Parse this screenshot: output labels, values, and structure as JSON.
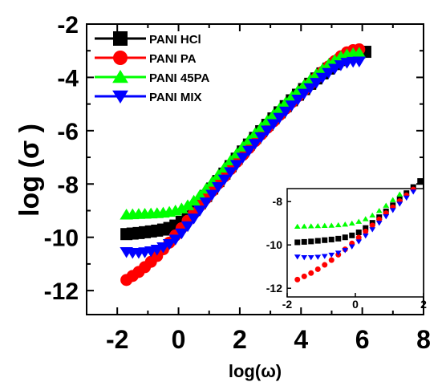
{
  "chart_data": [
    {
      "type": "scatter",
      "role": "main",
      "xlabel": "log(ω)",
      "ylabel": "log (σ )",
      "xlim": [
        -3,
        8
      ],
      "ylim": [
        -12.9,
        -2
      ],
      "xticks": [
        -2,
        0,
        2,
        4,
        6,
        8
      ],
      "yticks": [
        -2,
        -4,
        -6,
        -8,
        -10,
        -12
      ],
      "legend_position": "top-left",
      "series": [
        {
          "name": "PANI HCl",
          "color": "#000000",
          "marker": "square",
          "points": [
            [
              -1.7,
              -9.88
            ],
            [
              -1.5,
              -9.86
            ],
            [
              -1.3,
              -9.84
            ],
            [
              -1.1,
              -9.81
            ],
            [
              -0.9,
              -9.78
            ],
            [
              -0.7,
              -9.75
            ],
            [
              -0.5,
              -9.71
            ],
            [
              -0.3,
              -9.65
            ],
            [
              -0.1,
              -9.56
            ],
            [
              0.1,
              -9.42
            ],
            [
              0.3,
              -9.22
            ],
            [
              0.5,
              -8.98
            ],
            [
              0.7,
              -8.72
            ],
            [
              0.9,
              -8.45
            ],
            [
              1.1,
              -8.17
            ],
            [
              1.3,
              -7.89
            ],
            [
              1.5,
              -7.61
            ],
            [
              1.7,
              -7.33
            ],
            [
              1.9,
              -7.05
            ],
            [
              2.1,
              -6.78
            ],
            [
              2.3,
              -6.52
            ],
            [
              2.5,
              -6.27
            ],
            [
              2.7,
              -6.02
            ],
            [
              2.9,
              -5.78
            ],
            [
              3.1,
              -5.54
            ],
            [
              3.3,
              -5.31
            ],
            [
              3.5,
              -5.08
            ],
            [
              3.7,
              -4.86
            ],
            [
              3.9,
              -4.65
            ],
            [
              4.1,
              -4.44
            ],
            [
              4.3,
              -4.24
            ],
            [
              4.5,
              -4.04
            ],
            [
              4.7,
              -3.85
            ],
            [
              4.9,
              -3.67
            ],
            [
              5.1,
              -3.5
            ],
            [
              5.3,
              -3.35
            ],
            [
              5.5,
              -3.22
            ],
            [
              5.7,
              -3.13
            ],
            [
              5.9,
              -3.07
            ],
            [
              6.1,
              -3.04
            ]
          ]
        },
        {
          "name": "PANI PA",
          "color": "#ff0000",
          "marker": "circle",
          "points": [
            [
              -1.7,
              -11.6
            ],
            [
              -1.5,
              -11.45
            ],
            [
              -1.3,
              -11.3
            ],
            [
              -1.1,
              -11.12
            ],
            [
              -0.9,
              -10.92
            ],
            [
              -0.7,
              -10.7
            ],
            [
              -0.5,
              -10.45
            ],
            [
              -0.3,
              -10.2
            ],
            [
              -0.1,
              -9.93
            ],
            [
              0.1,
              -9.66
            ],
            [
              0.3,
              -9.38
            ],
            [
              0.5,
              -9.1
            ],
            [
              0.7,
              -8.82
            ],
            [
              0.9,
              -8.54
            ],
            [
              1.1,
              -8.26
            ],
            [
              1.3,
              -7.98
            ],
            [
              1.5,
              -7.71
            ],
            [
              1.7,
              -7.44
            ],
            [
              1.9,
              -7.17
            ],
            [
              2.1,
              -6.91
            ],
            [
              2.3,
              -6.65
            ],
            [
              2.5,
              -6.39
            ],
            [
              2.7,
              -6.14
            ],
            [
              2.9,
              -5.89
            ],
            [
              3.1,
              -5.65
            ],
            [
              3.3,
              -5.41
            ],
            [
              3.5,
              -5.17
            ],
            [
              3.7,
              -4.93
            ],
            [
              3.9,
              -4.7
            ],
            [
              4.1,
              -4.47
            ],
            [
              4.3,
              -4.24
            ],
            [
              4.5,
              -4.02
            ],
            [
              4.7,
              -3.8
            ],
            [
              4.9,
              -3.59
            ],
            [
              5.1,
              -3.39
            ],
            [
              5.3,
              -3.21
            ],
            [
              5.5,
              -3.06
            ],
            [
              5.7,
              -2.98
            ],
            [
              5.9,
              -2.95
            ]
          ]
        },
        {
          "name": "PANI 45PA",
          "color": "#00ff00",
          "marker": "triangle-up",
          "points": [
            [
              -1.7,
              -9.15
            ],
            [
              -1.5,
              -9.14
            ],
            [
              -1.3,
              -9.13
            ],
            [
              -1.1,
              -9.12
            ],
            [
              -0.9,
              -9.11
            ],
            [
              -0.7,
              -9.1
            ],
            [
              -0.5,
              -9.08
            ],
            [
              -0.3,
              -9.05
            ],
            [
              -0.1,
              -9.0
            ],
            [
              0.1,
              -8.92
            ],
            [
              0.3,
              -8.8
            ],
            [
              0.5,
              -8.63
            ],
            [
              0.7,
              -8.42
            ],
            [
              0.9,
              -8.18
            ],
            [
              1.1,
              -7.92
            ],
            [
              1.3,
              -7.66
            ],
            [
              1.5,
              -7.39
            ],
            [
              1.7,
              -7.12
            ],
            [
              1.9,
              -6.86
            ],
            [
              2.1,
              -6.6
            ],
            [
              2.3,
              -6.35
            ],
            [
              2.5,
              -6.1
            ],
            [
              2.7,
              -5.86
            ],
            [
              2.9,
              -5.62
            ],
            [
              3.1,
              -5.39
            ],
            [
              3.3,
              -5.16
            ],
            [
              3.5,
              -4.94
            ],
            [
              3.7,
              -4.72
            ],
            [
              3.9,
              -4.5
            ],
            [
              4.1,
              -4.29
            ],
            [
              4.3,
              -4.08
            ],
            [
              4.5,
              -3.88
            ],
            [
              4.7,
              -3.69
            ],
            [
              4.9,
              -3.51
            ],
            [
              5.1,
              -3.35
            ],
            [
              5.3,
              -3.22
            ],
            [
              5.5,
              -3.14
            ],
            [
              5.7,
              -3.1
            ],
            [
              5.9,
              -3.08
            ]
          ]
        },
        {
          "name": "PANI MIX",
          "color": "#0000ff",
          "marker": "triangle-down",
          "points": [
            [
              -1.7,
              -10.55
            ],
            [
              -1.5,
              -10.58
            ],
            [
              -1.3,
              -10.58
            ],
            [
              -1.1,
              -10.56
            ],
            [
              -0.9,
              -10.52
            ],
            [
              -0.7,
              -10.46
            ],
            [
              -0.5,
              -10.37
            ],
            [
              -0.3,
              -10.25
            ],
            [
              -0.1,
              -10.08
            ],
            [
              0.1,
              -9.85
            ],
            [
              0.3,
              -9.58
            ],
            [
              0.5,
              -9.29
            ],
            [
              0.7,
              -8.99
            ],
            [
              0.9,
              -8.69
            ],
            [
              1.1,
              -8.4
            ],
            [
              1.3,
              -8.11
            ],
            [
              1.5,
              -7.83
            ],
            [
              1.7,
              -7.55
            ],
            [
              1.9,
              -7.28
            ],
            [
              2.1,
              -7.01
            ],
            [
              2.3,
              -6.75
            ],
            [
              2.5,
              -6.49
            ],
            [
              2.7,
              -6.24
            ],
            [
              2.9,
              -5.99
            ],
            [
              3.1,
              -5.75
            ],
            [
              3.3,
              -5.51
            ],
            [
              3.5,
              -5.28
            ],
            [
              3.7,
              -5.05
            ],
            [
              3.9,
              -4.83
            ],
            [
              4.1,
              -4.61
            ],
            [
              4.3,
              -4.4
            ],
            [
              4.5,
              -4.2
            ],
            [
              4.7,
              -4.01
            ],
            [
              4.9,
              -3.83
            ],
            [
              5.1,
              -3.67
            ],
            [
              5.3,
              -3.54
            ],
            [
              5.5,
              -3.45
            ],
            [
              5.7,
              -3.41
            ],
            [
              5.9,
              -3.4
            ]
          ]
        }
      ],
      "legend": [
        {
          "label": "PANI HCl",
          "color": "#000000",
          "marker": "square"
        },
        {
          "label": "PANI PA",
          "color": "#ff0000",
          "marker": "circle"
        },
        {
          "label": "PANI 45PA",
          "color": "#00ff00",
          "marker": "triangle-up"
        },
        {
          "label": "PANI MIX",
          "color": "#0000ff",
          "marker": "triangle-down"
        }
      ]
    },
    {
      "type": "scatter",
      "role": "inset",
      "xlim": [
        -2,
        2
      ],
      "ylim": [
        -12.4,
        -7.4
      ],
      "xticks": [
        -2,
        0,
        2
      ],
      "yticks": [
        -8,
        -10,
        -12
      ],
      "series": [
        {
          "name": "PANI HCl",
          "color": "#000000",
          "marker": "square",
          "points": [
            [
              -1.7,
              -9.88
            ],
            [
              -1.5,
              -9.86
            ],
            [
              -1.3,
              -9.84
            ],
            [
              -1.1,
              -9.81
            ],
            [
              -0.9,
              -9.78
            ],
            [
              -0.7,
              -9.75
            ],
            [
              -0.5,
              -9.71
            ],
            [
              -0.3,
              -9.65
            ],
            [
              -0.1,
              -9.56
            ],
            [
              0.1,
              -9.42
            ],
            [
              0.3,
              -9.22
            ],
            [
              0.5,
              -8.98
            ],
            [
              0.7,
              -8.72
            ],
            [
              0.9,
              -8.45
            ],
            [
              1.1,
              -8.17
            ],
            [
              1.3,
              -7.89
            ],
            [
              1.5,
              -7.61
            ],
            [
              1.7,
              -7.33
            ],
            [
              1.9,
              -7.05
            ]
          ]
        },
        {
          "name": "PANI PA",
          "color": "#ff0000",
          "marker": "circle",
          "points": [
            [
              -1.7,
              -11.6
            ],
            [
              -1.5,
              -11.45
            ],
            [
              -1.3,
              -11.3
            ],
            [
              -1.1,
              -11.12
            ],
            [
              -0.9,
              -10.92
            ],
            [
              -0.7,
              -10.7
            ],
            [
              -0.5,
              -10.45
            ],
            [
              -0.3,
              -10.2
            ],
            [
              -0.1,
              -9.93
            ],
            [
              0.1,
              -9.66
            ],
            [
              0.3,
              -9.38
            ],
            [
              0.5,
              -9.1
            ],
            [
              0.7,
              -8.82
            ],
            [
              0.9,
              -8.54
            ],
            [
              1.1,
              -8.26
            ],
            [
              1.3,
              -7.98
            ],
            [
              1.5,
              -7.71
            ],
            [
              1.7,
              -7.44
            ]
          ]
        },
        {
          "name": "PANI 45PA",
          "color": "#00ff00",
          "marker": "triangle-up",
          "points": [
            [
              -1.7,
              -9.15
            ],
            [
              -1.5,
              -9.14
            ],
            [
              -1.3,
              -9.13
            ],
            [
              -1.1,
              -9.12
            ],
            [
              -0.9,
              -9.11
            ],
            [
              -0.7,
              -9.1
            ],
            [
              -0.5,
              -9.08
            ],
            [
              -0.3,
              -9.05
            ],
            [
              -0.1,
              -9.0
            ],
            [
              0.1,
              -8.92
            ],
            [
              0.3,
              -8.8
            ],
            [
              0.5,
              -8.63
            ],
            [
              0.7,
              -8.42
            ],
            [
              0.9,
              -8.18
            ],
            [
              1.1,
              -7.92
            ],
            [
              1.3,
              -7.66
            ]
          ]
        },
        {
          "name": "PANI MIX",
          "color": "#0000ff",
          "marker": "triangle-down",
          "points": [
            [
              -1.7,
              -10.55
            ],
            [
              -1.5,
              -10.58
            ],
            [
              -1.3,
              -10.58
            ],
            [
              -1.1,
              -10.56
            ],
            [
              -0.9,
              -10.52
            ],
            [
              -0.7,
              -10.46
            ],
            [
              -0.5,
              -10.37
            ],
            [
              -0.3,
              -10.25
            ],
            [
              -0.1,
              -10.08
            ],
            [
              0.1,
              -9.85
            ],
            [
              0.3,
              -9.58
            ],
            [
              0.5,
              -9.29
            ],
            [
              0.7,
              -8.99
            ],
            [
              0.9,
              -8.69
            ],
            [
              1.1,
              -8.4
            ],
            [
              1.3,
              -8.11
            ],
            [
              1.5,
              -7.83
            ],
            [
              1.7,
              -7.55
            ]
          ]
        }
      ]
    }
  ]
}
